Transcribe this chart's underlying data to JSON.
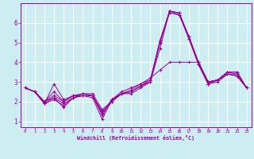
{
  "xlabel": "Windchill (Refroidissement éolien,°C)",
  "bg_color": "#cceef2",
  "line_color": "#990099",
  "grid_color": "#ffffff",
  "xlim": [
    -0.5,
    23.5
  ],
  "ylim": [
    0.7,
    7.0
  ],
  "xticks": [
    0,
    1,
    2,
    3,
    4,
    5,
    6,
    7,
    8,
    9,
    10,
    11,
    12,
    13,
    14,
    15,
    16,
    17,
    18,
    19,
    20,
    21,
    22,
    23
  ],
  "yticks": [
    1,
    2,
    3,
    4,
    5,
    6
  ],
  "curves": [
    [
      2.7,
      2.5,
      1.9,
      2.9,
      2.1,
      2.3,
      2.3,
      2.2,
      1.1,
      2.1,
      2.4,
      2.5,
      2.8,
      3.1,
      5.0,
      6.6,
      6.5,
      5.3,
      4.0,
      3.0,
      3.1,
      3.5,
      3.5,
      2.7
    ],
    [
      2.7,
      2.5,
      1.9,
      2.1,
      1.8,
      2.2,
      2.4,
      2.4,
      1.6,
      2.0,
      2.4,
      2.4,
      2.7,
      3.0,
      4.7,
      6.6,
      6.4,
      5.3,
      3.9,
      2.9,
      3.1,
      3.4,
      3.4,
      2.7
    ],
    [
      2.7,
      2.5,
      2.0,
      2.2,
      1.7,
      2.2,
      2.3,
      2.3,
      1.5,
      2.0,
      2.4,
      2.5,
      2.8,
      3.0,
      5.1,
      6.5,
      6.4,
      5.2,
      3.9,
      2.9,
      3.1,
      3.4,
      3.3,
      2.7
    ],
    [
      2.7,
      2.5,
      2.0,
      2.5,
      2.0,
      2.3,
      2.4,
      2.3,
      1.4,
      2.1,
      2.4,
      2.6,
      2.9,
      3.1,
      5.1,
      6.6,
      6.5,
      5.3,
      4.0,
      3.0,
      3.1,
      3.5,
      3.4,
      2.7
    ],
    [
      2.7,
      2.5,
      1.9,
      2.2,
      1.9,
      2.2,
      2.3,
      2.3,
      1.3,
      2.0,
      2.4,
      2.5,
      2.8,
      3.0,
      5.0,
      6.6,
      6.5,
      5.2,
      3.9,
      2.9,
      3.0,
      3.4,
      3.3,
      2.7
    ],
    [
      2.7,
      2.5,
      2.0,
      2.3,
      2.0,
      2.3,
      2.4,
      2.3,
      1.4,
      2.1,
      2.5,
      2.7,
      2.9,
      3.2,
      3.6,
      4.0,
      4.0,
      4.0,
      4.0,
      3.0,
      3.1,
      3.5,
      3.5,
      2.7
    ]
  ]
}
